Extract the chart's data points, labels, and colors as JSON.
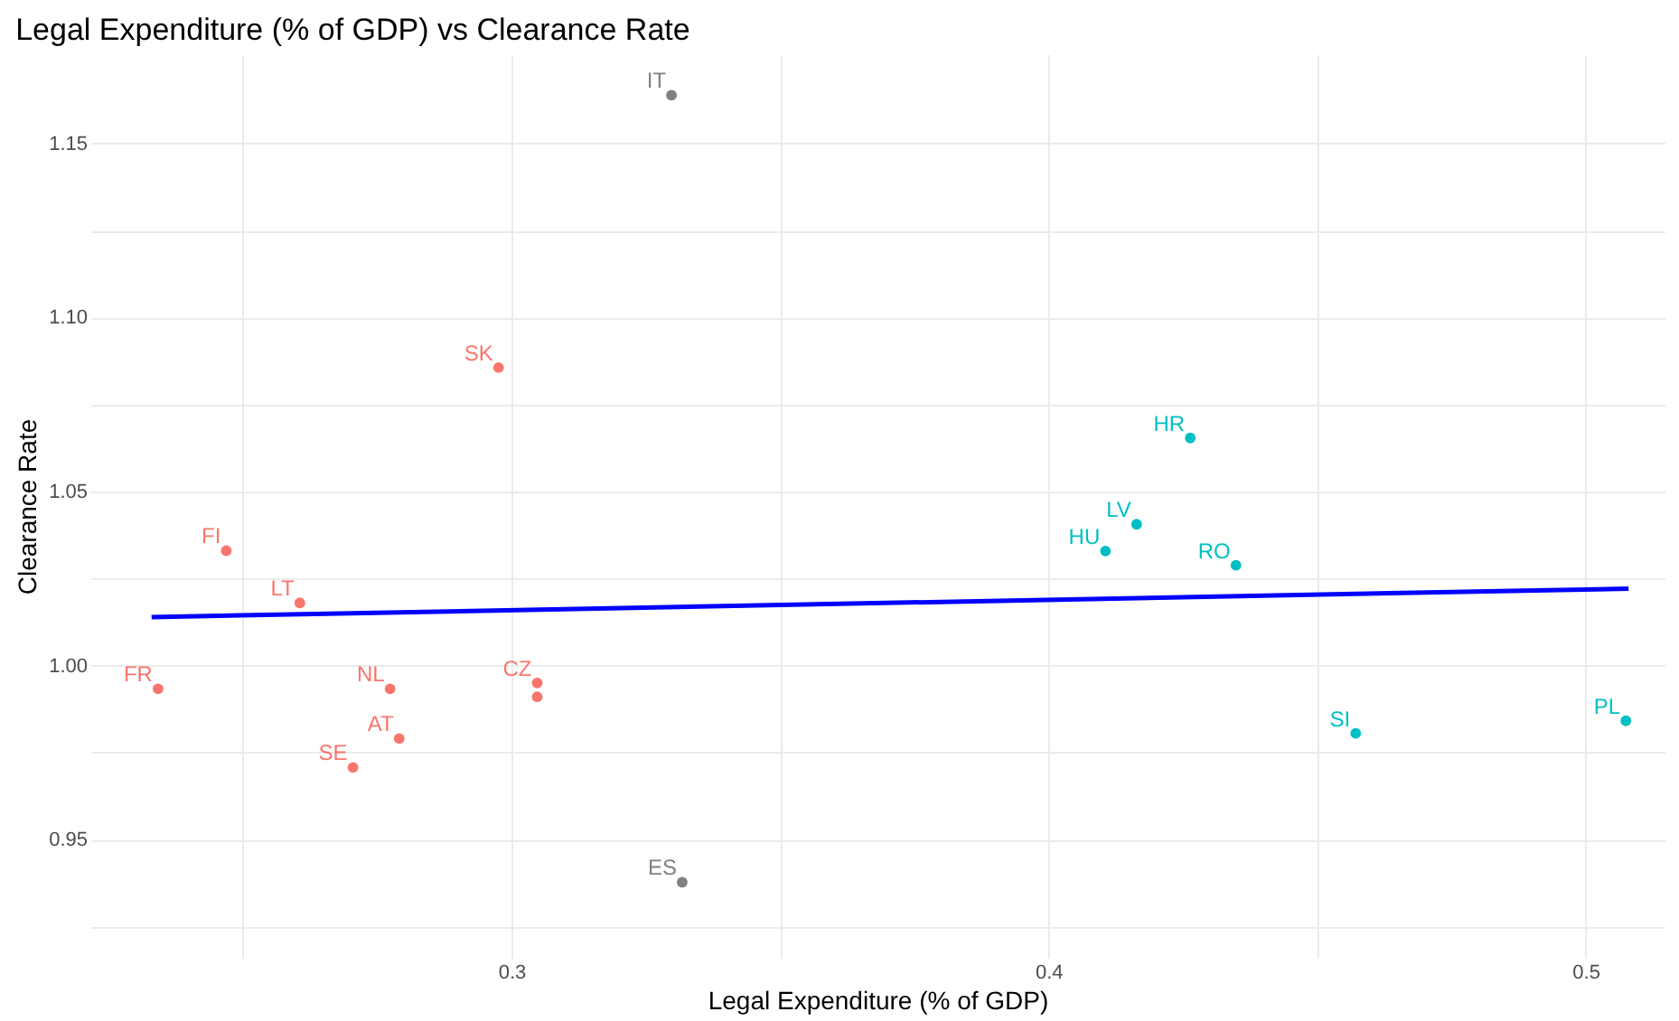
{
  "chart_data": {
    "type": "scatter",
    "title": "Legal Expenditure (% of GDP) vs Clearance Rate",
    "xlabel": "Legal Expenditure (% of GDP)",
    "ylabel": "Clearance Rate",
    "xlim": [
      0.2216,
      0.5147
    ],
    "ylim": [
      0.916,
      1.1757
    ],
    "xticks": [
      {
        "value": 0.25,
        "label": null
      },
      0.3,
      {
        "value": 0.35,
        "label": null
      },
      0.4,
      {
        "value": 0.45,
        "label": null
      },
      0.5
    ],
    "yticks": [
      {
        "value": 0.925,
        "label": null
      },
      0.95,
      {
        "value": 0.975,
        "label": null
      },
      {
        "value": 1,
        "label": "1.00"
      },
      {
        "value": 1.025,
        "label": null
      },
      1.05,
      {
        "value": 1.075,
        "label": null
      },
      {
        "value": 1.1,
        "label": "1.10"
      },
      {
        "value": 1.125,
        "label": null
      },
      1.15
    ],
    "grid": true,
    "marker": "circle",
    "series": [
      {
        "color": "#f8766d",
        "x": [
          0.2976,
          0.2469,
          0.2606,
          0.2342,
          0.2774,
          0.3048,
          0.3048,
          0.2791,
          0.2705
        ],
        "values": [
          1.0856,
          1.033,
          1.018,
          0.9933,
          0.9933,
          0.995,
          0.991,
          0.979,
          0.9707
        ],
        "value_labels": [
          "SK",
          "FI",
          "LT",
          "FR",
          "NL",
          "CZ",
          null,
          "AT",
          "SE"
        ]
      },
      {
        "color": "#00bfc4",
        "x": [
          0.4264,
          0.4164,
          0.4106,
          0.4349,
          0.4572,
          0.5075
        ],
        "values": [
          1.0654,
          1.0406,
          1.0329,
          1.0288,
          0.9805,
          0.9841
        ],
        "value_labels": [
          "HR",
          "LV",
          "HU",
          "RO",
          "SI",
          "PL"
        ]
      },
      {
        "color": "#808080",
        "x": [
          0.3298,
          0.3318
        ],
        "values": [
          1.1639,
          0.9377
        ],
        "value_labels": [
          "IT",
          "ES"
        ]
      },
      {
        "type": "line",
        "color": "#0000ff",
        "x": [
          0.233,
          0.508
        ],
        "values": [
          1.0139,
          1.0221
        ],
        "line_style": "solid",
        "marker": "none"
      }
    ]
  }
}
